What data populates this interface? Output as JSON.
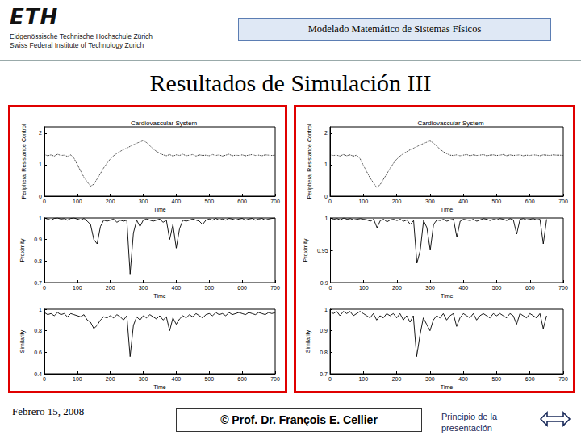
{
  "slide": {
    "logo_mark": "ETH",
    "logo": [
      "Eidgenössische Technische Hochschule Zürich",
      "Swiss Federal Institute of Technology Zurich"
    ],
    "header": "Modelado Matemático de Sistemas Físicos",
    "title": "Resultados de Simulación III",
    "date": "Febrero 15, 2008",
    "author": "© Prof. Dr. François E. Cellier",
    "link": "Principio de la presentación"
  },
  "chart_data": [
    {
      "type": "line",
      "title": "Cardiovascular System",
      "xlabel": "Time",
      "ylabel": "Peripheral Resistance Control",
      "grid": false,
      "x": [
        0,
        10,
        20,
        30,
        40,
        50,
        60,
        70,
        80,
        90,
        100,
        110,
        120,
        130,
        140,
        150,
        160,
        170,
        180,
        190,
        200,
        210,
        220,
        230,
        240,
        250,
        260,
        270,
        280,
        290,
        300,
        310,
        320,
        330,
        340,
        350,
        360,
        370,
        380,
        390,
        400,
        410,
        420,
        430,
        440,
        450,
        460,
        470,
        480,
        490,
        500,
        510,
        520,
        530,
        540,
        550,
        560,
        570,
        580,
        590,
        600,
        610,
        620,
        630,
        640,
        650,
        660,
        670,
        680,
        690,
        700
      ],
      "xlim": [
        0,
        700
      ],
      "xticks": [
        0,
        100,
        200,
        300,
        400,
        500,
        600,
        700
      ],
      "ylim": [
        0,
        2.2
      ],
      "yticks": [
        0,
        1,
        2
      ],
      "series": [
        {
          "color": "#000000",
          "line_style": "dotted",
          "values": [
            1.32,
            1.28,
            1.31,
            1.27,
            1.33,
            1.29,
            1.3,
            1.26,
            1.31,
            1.2,
            1.0,
            0.8,
            0.6,
            0.45,
            0.32,
            0.38,
            0.55,
            0.72,
            0.9,
            1.05,
            1.18,
            1.28,
            1.36,
            1.42,
            1.48,
            1.52,
            1.58,
            1.63,
            1.68,
            1.72,
            1.76,
            1.7,
            1.6,
            1.5,
            1.42,
            1.36,
            1.31,
            1.28,
            1.32,
            1.27,
            1.31,
            1.29,
            1.33,
            1.28,
            1.3,
            1.32,
            1.27,
            1.31,
            1.29,
            1.3,
            1.28,
            1.32,
            1.29,
            1.31,
            1.27,
            1.3,
            1.33,
            1.28,
            1.3,
            1.29,
            1.31,
            1.28,
            1.3,
            1.32,
            1.29,
            1.3,
            1.28,
            1.31,
            1.3,
            1.29,
            1.3
          ]
        }
      ]
    },
    {
      "type": "line",
      "xlabel": "Time",
      "ylabel": "Proximity",
      "grid": false,
      "x": [
        0,
        10,
        20,
        30,
        40,
        50,
        60,
        70,
        80,
        90,
        100,
        110,
        120,
        130,
        140,
        150,
        160,
        170,
        180,
        190,
        200,
        210,
        220,
        230,
        240,
        250,
        260,
        270,
        280,
        290,
        300,
        310,
        320,
        330,
        340,
        350,
        360,
        370,
        380,
        390,
        400,
        410,
        420,
        430,
        440,
        450,
        460,
        470,
        480,
        490,
        500,
        510,
        520,
        530,
        540,
        550,
        560,
        570,
        580,
        590,
        600,
        610,
        620,
        630,
        640,
        650,
        660,
        670,
        680,
        690,
        700
      ],
      "xlim": [
        0,
        700
      ],
      "xticks": [
        0,
        100,
        200,
        300,
        400,
        500,
        600,
        700
      ],
      "ylim": [
        0.7,
        1
      ],
      "yticks": [
        0.7,
        0.8,
        0.9,
        1
      ],
      "series": [
        {
          "color": "#000000",
          "line_style": "solid",
          "values": [
            1,
            0.995,
            0.99,
            0.998,
            1,
            0.995,
            0.997,
            0.99,
            0.998,
            1,
            0.995,
            0.99,
            0.998,
            0.985,
            0.97,
            0.9,
            0.88,
            0.96,
            0.99,
            0.985,
            0.99,
            0.995,
            0.98,
            0.99,
            0.985,
            0.99,
            0.74,
            0.93,
            0.99,
            0.96,
            0.99,
            0.995,
            0.99,
            0.985,
            0.99,
            0.995,
            0.98,
            0.99,
            0.9,
            0.97,
            0.86,
            0.95,
            0.99,
            0.985,
            0.99,
            0.995,
            0.99,
            0.985,
            0.97,
            0.99,
            0.995,
            0.99,
            0.998,
            0.99,
            0.995,
            0.99,
            0.998,
            0.995,
            0.99,
            0.995,
            0.998,
            0.99,
            0.995,
            0.998,
            0.99,
            0.995,
            0.998,
            0.99,
            0.995,
            0.998,
            1
          ]
        }
      ]
    },
    {
      "type": "line",
      "xlabel": "Time",
      "ylabel": "Similarity",
      "grid": false,
      "x": [
        0,
        10,
        20,
        30,
        40,
        50,
        60,
        70,
        80,
        90,
        100,
        110,
        120,
        130,
        140,
        150,
        160,
        170,
        180,
        190,
        200,
        210,
        220,
        230,
        240,
        250,
        260,
        270,
        280,
        290,
        300,
        310,
        320,
        330,
        340,
        350,
        360,
        370,
        380,
        390,
        400,
        410,
        420,
        430,
        440,
        450,
        460,
        470,
        480,
        490,
        500,
        510,
        520,
        530,
        540,
        550,
        560,
        570,
        580,
        590,
        600,
        610,
        620,
        630,
        640,
        650,
        660,
        670,
        680,
        690,
        700
      ],
      "xlim": [
        0,
        700
      ],
      "xticks": [
        0,
        100,
        200,
        300,
        400,
        500,
        600,
        700
      ],
      "ylim": [
        0.4,
        1
      ],
      "yticks": [
        0.4,
        0.6,
        0.8,
        1
      ],
      "series": [
        {
          "color": "#000000",
          "line_style": "solid",
          "values": [
            0.97,
            0.95,
            0.96,
            0.94,
            0.97,
            0.95,
            0.96,
            0.93,
            0.96,
            0.95,
            0.94,
            0.93,
            0.95,
            0.9,
            0.88,
            0.82,
            0.85,
            0.9,
            0.93,
            0.92,
            0.94,
            0.92,
            0.95,
            0.93,
            0.9,
            0.94,
            0.56,
            0.85,
            0.93,
            0.9,
            0.94,
            0.92,
            0.95,
            0.93,
            0.91,
            0.94,
            0.9,
            0.93,
            0.8,
            0.92,
            0.86,
            0.91,
            0.94,
            0.92,
            0.95,
            0.93,
            0.96,
            0.94,
            0.92,
            0.95,
            0.96,
            0.94,
            0.97,
            0.95,
            0.96,
            0.94,
            0.97,
            0.95,
            0.96,
            0.97,
            0.96,
            0.95,
            0.97,
            0.96,
            0.95,
            0.97,
            0.96,
            0.95,
            0.97,
            0.96,
            0.97
          ]
        }
      ]
    },
    {
      "type": "line",
      "title": "Cardiovascular System",
      "xlabel": "Time",
      "ylabel": "Peripheral Resistance Control",
      "grid": false,
      "x": [
        0,
        10,
        20,
        30,
        40,
        50,
        60,
        70,
        80,
        90,
        100,
        110,
        120,
        130,
        140,
        150,
        160,
        170,
        180,
        190,
        200,
        210,
        220,
        230,
        240,
        250,
        260,
        270,
        280,
        290,
        300,
        310,
        320,
        330,
        340,
        350,
        360,
        370,
        380,
        390,
        400,
        410,
        420,
        430,
        440,
        450,
        460,
        470,
        480,
        490,
        500,
        510,
        520,
        530,
        540,
        550,
        560,
        570,
        580,
        590,
        600,
        610,
        620,
        630,
        640,
        650,
        660,
        670,
        680,
        690,
        700
      ],
      "xlim": [
        0,
        700
      ],
      "xticks": [
        0,
        100,
        200,
        300,
        400,
        500,
        600,
        700
      ],
      "ylim": [
        0,
        2.2
      ],
      "yticks": [
        0,
        1,
        2
      ],
      "series": [
        {
          "color": "#000000",
          "line_style": "dotted",
          "values": [
            1.31,
            1.29,
            1.3,
            1.27,
            1.32,
            1.28,
            1.31,
            1.27,
            1.3,
            1.19,
            0.98,
            0.78,
            0.58,
            0.43,
            0.28,
            0.36,
            0.53,
            0.7,
            0.88,
            1.04,
            1.17,
            1.27,
            1.35,
            1.41,
            1.47,
            1.52,
            1.57,
            1.62,
            1.67,
            1.71,
            1.75,
            1.69,
            1.59,
            1.49,
            1.41,
            1.35,
            1.3,
            1.29,
            1.31,
            1.28,
            1.3,
            1.32,
            1.28,
            1.31,
            1.29,
            1.3,
            1.32,
            1.28,
            1.3,
            1.31,
            1.29,
            1.3,
            1.32,
            1.28,
            1.31,
            1.29,
            1.3,
            1.31,
            1.28,
            1.3,
            1.29,
            1.31,
            1.3,
            1.28,
            1.31,
            1.3,
            1.29,
            1.31,
            1.3,
            1.3,
            1.29
          ]
        }
      ]
    },
    {
      "type": "line",
      "xlabel": "Time",
      "ylabel": "Proximity",
      "grid": false,
      "x": [
        0,
        10,
        20,
        30,
        40,
        50,
        60,
        70,
        80,
        90,
        100,
        110,
        120,
        130,
        140,
        150,
        160,
        170,
        180,
        190,
        200,
        210,
        220,
        230,
        240,
        250,
        260,
        270,
        280,
        290,
        300,
        310,
        320,
        330,
        340,
        350,
        360,
        370,
        380,
        390,
        400,
        410,
        420,
        430,
        440,
        450,
        460,
        470,
        480,
        490,
        500,
        510,
        520,
        530,
        540,
        550,
        560,
        570,
        580,
        590,
        600,
        610,
        620,
        630,
        640,
        650,
        660,
        670,
        680,
        690,
        700
      ],
      "xlim": [
        0,
        700
      ],
      "xticks": [
        0,
        100,
        200,
        300,
        400,
        500,
        600,
        700
      ],
      "ylim": [
        0.9,
        1
      ],
      "yticks": [
        0.9,
        0.95,
        1
      ],
      "series": [
        {
          "color": "#000000",
          "line_style": "solid",
          "values": [
            1,
            0.998,
            0.999,
            0.997,
            1,
            0.998,
            0.999,
            0.997,
            0.998,
            0.999,
            0.998,
            0.997,
            0.995,
            0.998,
            0.985,
            0.996,
            0.998,
            0.994,
            0.997,
            0.998,
            0.996,
            0.998,
            0.995,
            0.997,
            0.99,
            0.996,
            0.93,
            0.95,
            0.996,
            0.985,
            0.95,
            0.99,
            0.997,
            0.996,
            0.998,
            0.995,
            0.997,
            0.998,
            0.97,
            0.995,
            0.998,
            0.997,
            0.996,
            0.998,
            0.995,
            0.997,
            0.999,
            0.998,
            0.996,
            0.998,
            0.997,
            0.999,
            0.998,
            0.996,
            0.999,
            0.997,
            0.975,
            0.998,
            0.999,
            0.997,
            0.998,
            0.999,
            0.997,
            0.998,
            0.96,
            0.998,
            null,
            null,
            null,
            null,
            null
          ]
        }
      ]
    },
    {
      "type": "line",
      "xlabel": "Time",
      "ylabel": "Similarity",
      "grid": false,
      "x": [
        0,
        10,
        20,
        30,
        40,
        50,
        60,
        70,
        80,
        90,
        100,
        110,
        120,
        130,
        140,
        150,
        160,
        170,
        180,
        190,
        200,
        210,
        220,
        230,
        240,
        250,
        260,
        270,
        280,
        290,
        300,
        310,
        320,
        330,
        340,
        350,
        360,
        370,
        380,
        390,
        400,
        410,
        420,
        430,
        440,
        450,
        460,
        470,
        480,
        490,
        500,
        510,
        520,
        530,
        540,
        550,
        560,
        570,
        580,
        590,
        600,
        610,
        620,
        630,
        640,
        650,
        660,
        670,
        680,
        690,
        700
      ],
      "xlim": [
        0,
        700
      ],
      "xticks": [
        0,
        100,
        200,
        300,
        400,
        500,
        600,
        700
      ],
      "ylim": [
        0.7,
        1
      ],
      "yticks": [
        0.7,
        0.8,
        0.9,
        1
      ],
      "series": [
        {
          "color": "#000000",
          "line_style": "solid",
          "values": [
            0.99,
            0.98,
            0.99,
            0.97,
            0.99,
            0.98,
            0.99,
            0.97,
            0.98,
            0.99,
            0.98,
            0.97,
            0.96,
            0.98,
            0.95,
            0.97,
            0.96,
            0.98,
            0.97,
            0.98,
            0.96,
            0.98,
            0.95,
            0.97,
            0.94,
            0.97,
            0.78,
            0.88,
            0.96,
            0.93,
            0.9,
            0.95,
            0.97,
            0.96,
            0.98,
            0.95,
            0.97,
            0.98,
            0.92,
            0.96,
            0.98,
            0.97,
            0.96,
            0.98,
            0.95,
            0.97,
            0.98,
            0.97,
            0.96,
            0.98,
            0.97,
            0.98,
            0.97,
            0.96,
            0.98,
            0.97,
            0.93,
            0.98,
            0.97,
            0.96,
            0.98,
            0.97,
            0.96,
            0.98,
            0.91,
            0.97,
            null,
            null,
            null,
            null,
            null
          ]
        }
      ]
    }
  ]
}
